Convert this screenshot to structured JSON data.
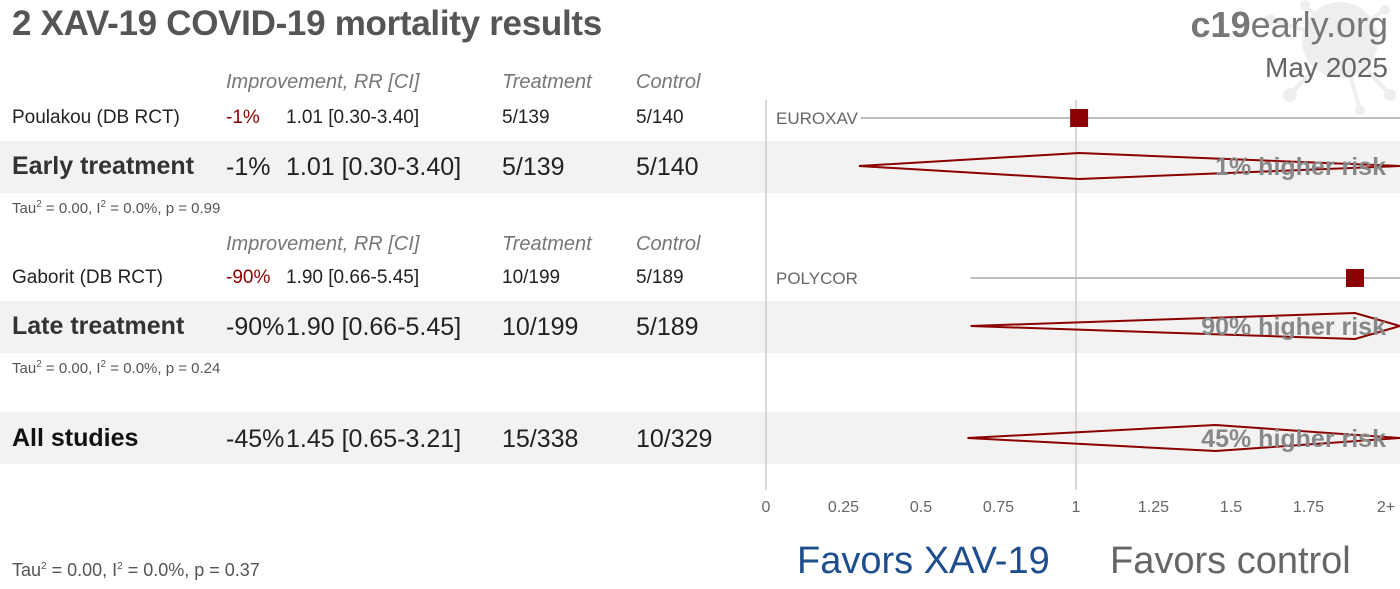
{
  "title": "2 XAV-19 COVID-19 mortality results",
  "brand": {
    "bold": "c19",
    "rest": "early.org"
  },
  "date": "May 2025",
  "headers": {
    "improvement": "Improvement, RR [CI]",
    "treatment": "Treatment",
    "control": "Control"
  },
  "groups": [
    {
      "studies": [
        {
          "name": "Poulakou (DB RCT)",
          "improvement": "-1%",
          "rr_ci": "1.01 [0.30-3.40]",
          "treatment": "5/139",
          "control": "5/140",
          "label": "EUROXAV"
        }
      ],
      "summary": {
        "name": "Early treatment",
        "improvement": "-1%",
        "rr_ci": "1.01 [0.30-3.40]",
        "treatment": "5/139",
        "control": "5/140",
        "risk_text": "1% higher risk"
      },
      "stats": {
        "tau": "Tau",
        "tau_rest": " = 0.00, I",
        "i_rest": " = 0.0%, p = 0.99"
      }
    },
    {
      "studies": [
        {
          "name": "Gaborit (DB RCT)",
          "improvement": "-90%",
          "rr_ci": "1.90 [0.66-5.45]",
          "treatment": "10/199",
          "control": "5/189",
          "label": "POLYCOR"
        }
      ],
      "summary": {
        "name": "Late treatment",
        "improvement": "-90%",
        "rr_ci": "1.90 [0.66-5.45]",
        "treatment": "10/199",
        "control": "5/189",
        "risk_text": "90% higher risk"
      },
      "stats": {
        "tau": "Tau",
        "tau_rest": " = 0.00, I",
        "i_rest": " = 0.0%, p = 0.24"
      }
    }
  ],
  "overall": {
    "name": "All studies",
    "improvement": "-45%",
    "rr_ci": "1.45 [0.65-3.21]",
    "treatment": "15/338",
    "control": "10/329",
    "risk_text": "45% higher risk"
  },
  "overall_stats": {
    "tau": "Tau",
    "tau_rest": " = 0.00, I",
    "i_rest": " = 0.0%, p = 0.37"
  },
  "favors": {
    "left": "Favors XAV-19",
    "right": "Favors control",
    "left_color": "#1f4e8c",
    "right_color": "#666666"
  },
  "chart_data": {
    "type": "forest",
    "x_ticks": [
      "0",
      "0.25",
      "0.5",
      "0.75",
      "1",
      "1.25",
      "1.5",
      "1.75",
      "2+"
    ],
    "xlim": [
      0,
      2
    ],
    "reference_line": 1,
    "studies": [
      {
        "label": "EUROXAV",
        "rr": 1.01,
        "lo": 0.3,
        "hi": 3.4
      },
      {
        "label": "POLYCOR",
        "rr": 1.9,
        "lo": 0.66,
        "hi": 5.45
      }
    ],
    "summaries": [
      {
        "name": "Early treatment",
        "rr": 1.01,
        "lo": 0.3,
        "hi": 3.4
      },
      {
        "name": "Late treatment",
        "rr": 1.9,
        "lo": 0.66,
        "hi": 5.45
      },
      {
        "name": "All studies",
        "rr": 1.45,
        "lo": 0.65,
        "hi": 3.21
      }
    ],
    "marker_color": "#8b0000",
    "diamond_color": "#8b0000"
  }
}
